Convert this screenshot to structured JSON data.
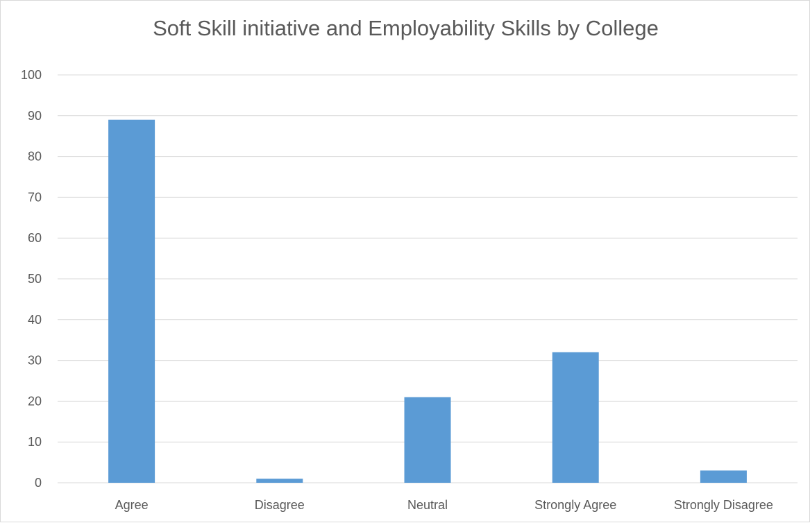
{
  "chart_data": {
    "type": "bar",
    "title": "Soft Skill initiative and Employability Skills by College",
    "categories": [
      "Agree",
      "Disagree",
      "Neutral",
      "Strongly Agree",
      "Strongly Disagree"
    ],
    "values": [
      89,
      1,
      21,
      32,
      3
    ],
    "ylim": [
      0,
      100
    ],
    "yticks": [
      0,
      10,
      20,
      30,
      40,
      50,
      60,
      70,
      80,
      90,
      100
    ],
    "xlabel": "",
    "ylabel": "",
    "grid": true,
    "legend": "none",
    "colors": {
      "bar": "#5b9bd5",
      "grid": "#d9d9d9",
      "text": "#595959"
    }
  }
}
